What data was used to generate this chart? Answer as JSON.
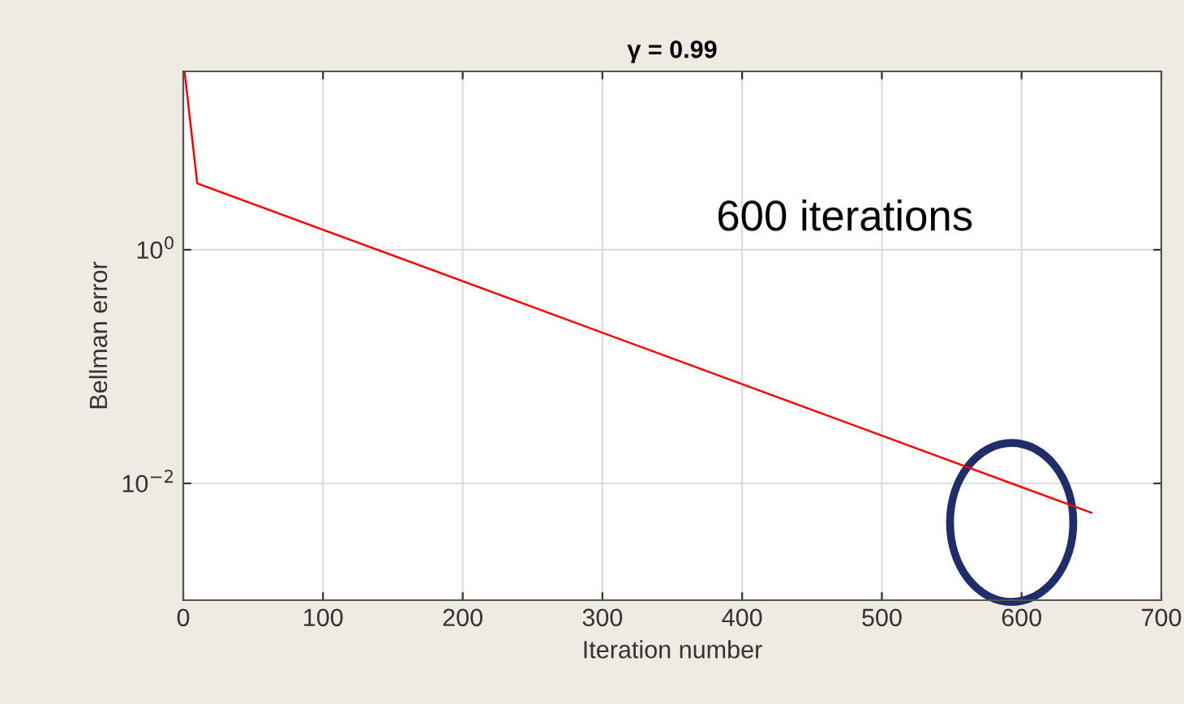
{
  "chart_data": {
    "type": "line",
    "title": "γ = 0.99",
    "xlabel": "Iteration number",
    "ylabel": "Bellman error",
    "x": [
      1,
      10,
      650
    ],
    "series": [
      {
        "color": "#ff0000",
        "values": [
          33,
          3.7,
          0.0056
        ]
      }
    ],
    "log": "y",
    "xlim": [
      0,
      700
    ],
    "xticks": [
      0,
      100,
      200,
      300,
      400,
      500,
      600,
      700
    ],
    "ylim": [
      0.001,
      33.7
    ],
    "yticks": [
      {
        "value": 1,
        "label": "10$^{0}$"
      },
      {
        "value": 0.01,
        "label": "10$^{−2}$"
      }
    ],
    "grid": true,
    "annotations": [
      "600 iterations"
    ]
  }
}
